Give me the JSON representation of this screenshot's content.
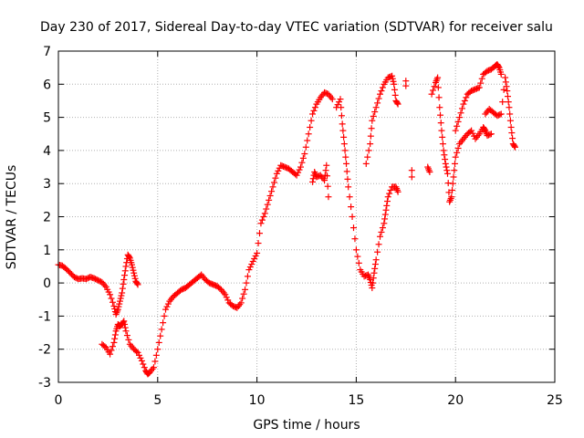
{
  "chart_data": {
    "type": "scatter",
    "title": "Day 230 of 2017, Sidereal Day-to-day VTEC variation (SDTVAR) for receiver salu",
    "xlabel": "GPS time / hours",
    "ylabel": "SDTVAR / TECUs",
    "xlim": [
      0,
      25
    ],
    "ylim": [
      -3,
      7
    ],
    "xticks": [
      "0",
      "5",
      "10",
      "15",
      "20",
      "25"
    ],
    "yticks": [
      "-3",
      "-2",
      "-1",
      "0",
      "1",
      "2",
      "3",
      "4",
      "5",
      "6",
      "7"
    ],
    "grid": true,
    "marker": "+",
    "color": "#ff0000",
    "series": [
      {
        "points": [
          [
            0.0,
            0.55
          ],
          [
            0.2,
            0.52
          ],
          [
            0.4,
            0.42
          ],
          [
            0.6,
            0.3
          ],
          [
            0.8,
            0.18
          ],
          [
            1.0,
            0.12
          ],
          [
            1.2,
            0.14
          ],
          [
            1.4,
            0.12
          ],
          [
            1.6,
            0.18
          ],
          [
            1.8,
            0.14
          ],
          [
            2.0,
            0.08
          ],
          [
            2.2,
            0.02
          ],
          [
            2.4,
            -0.12
          ],
          [
            2.6,
            -0.35
          ],
          [
            2.8,
            -0.7
          ],
          [
            2.9,
            -0.95
          ],
          [
            3.0,
            -0.8
          ],
          [
            3.1,
            -0.55
          ],
          [
            3.2,
            -0.3
          ],
          [
            3.3,
            0.1
          ],
          [
            3.4,
            0.5
          ],
          [
            3.5,
            0.85
          ],
          [
            3.6,
            0.75
          ],
          [
            3.7,
            0.55
          ],
          [
            3.8,
            0.3
          ],
          [
            3.9,
            0.05
          ],
          [
            4.0,
            -0.05
          ],
          [
            2.2,
            -1.85
          ],
          [
            2.4,
            -1.95
          ],
          [
            2.6,
            -2.15
          ],
          [
            2.8,
            -1.8
          ],
          [
            2.9,
            -1.45
          ],
          [
            3.0,
            -1.25
          ],
          [
            3.1,
            -1.3
          ],
          [
            3.2,
            -1.25
          ],
          [
            3.3,
            -1.15
          ],
          [
            3.4,
            -1.45
          ],
          [
            3.6,
            -1.85
          ],
          [
            3.8,
            -2.0
          ],
          [
            4.0,
            -2.1
          ],
          [
            4.2,
            -2.35
          ],
          [
            4.4,
            -2.65
          ],
          [
            4.5,
            -2.75
          ],
          [
            4.6,
            -2.7
          ],
          [
            4.8,
            -2.55
          ],
          [
            5.0,
            -2.0
          ],
          [
            5.2,
            -1.4
          ],
          [
            5.4,
            -0.8
          ],
          [
            5.6,
            -0.55
          ],
          [
            5.8,
            -0.4
          ],
          [
            6.0,
            -0.3
          ],
          [
            6.2,
            -0.2
          ],
          [
            6.4,
            -0.15
          ],
          [
            6.6,
            -0.05
          ],
          [
            6.8,
            0.05
          ],
          [
            7.0,
            0.15
          ],
          [
            7.2,
            0.25
          ],
          [
            7.4,
            0.1
          ],
          [
            7.6,
            0.0
          ],
          [
            7.8,
            -0.05
          ],
          [
            8.0,
            -0.1
          ],
          [
            8.2,
            -0.2
          ],
          [
            8.4,
            -0.35
          ],
          [
            8.6,
            -0.6
          ],
          [
            8.8,
            -0.7
          ],
          [
            9.0,
            -0.75
          ],
          [
            9.2,
            -0.6
          ],
          [
            9.4,
            -0.2
          ],
          [
            9.6,
            0.4
          ],
          [
            9.8,
            0.65
          ],
          [
            10.0,
            0.9
          ],
          [
            10.2,
            1.8
          ],
          [
            10.4,
            2.1
          ],
          [
            10.6,
            2.5
          ],
          [
            10.8,
            2.9
          ],
          [
            11.0,
            3.3
          ],
          [
            11.2,
            3.55
          ],
          [
            11.4,
            3.5
          ],
          [
            11.6,
            3.45
          ],
          [
            11.8,
            3.35
          ],
          [
            12.0,
            3.25
          ],
          [
            12.2,
            3.5
          ],
          [
            12.4,
            3.9
          ],
          [
            12.6,
            4.5
          ],
          [
            12.8,
            5.1
          ],
          [
            13.0,
            5.4
          ],
          [
            13.2,
            5.6
          ],
          [
            13.4,
            5.75
          ],
          [
            13.6,
            5.7
          ],
          [
            13.8,
            5.55
          ],
          [
            12.8,
            3.05
          ],
          [
            12.9,
            3.35
          ],
          [
            13.0,
            3.2
          ],
          [
            13.2,
            3.25
          ],
          [
            13.4,
            3.1
          ],
          [
            13.5,
            3.55
          ],
          [
            13.6,
            2.6
          ],
          [
            14.0,
            5.3
          ],
          [
            14.2,
            5.55
          ],
          [
            14.3,
            4.8
          ],
          [
            14.4,
            4.2
          ],
          [
            14.5,
            3.6
          ],
          [
            14.6,
            2.9
          ],
          [
            14.8,
            2.0
          ],
          [
            15.0,
            1.0
          ],
          [
            15.2,
            0.4
          ],
          [
            15.4,
            0.2
          ],
          [
            15.6,
            0.25
          ],
          [
            15.7,
            0.1
          ],
          [
            15.8,
            -0.15
          ],
          [
            15.9,
            0.3
          ],
          [
            16.0,
            0.7
          ],
          [
            16.2,
            1.4
          ],
          [
            16.4,
            1.8
          ],
          [
            16.5,
            2.2
          ],
          [
            16.6,
            2.6
          ],
          [
            16.8,
            2.9
          ],
          [
            17.0,
            2.9
          ],
          [
            17.1,
            2.75
          ],
          [
            15.5,
            3.6
          ],
          [
            15.7,
            4.2
          ],
          [
            15.8,
            4.9
          ],
          [
            16.0,
            5.3
          ],
          [
            16.2,
            5.7
          ],
          [
            16.4,
            6.0
          ],
          [
            16.6,
            6.2
          ],
          [
            16.8,
            6.25
          ],
          [
            16.9,
            6.0
          ],
          [
            17.0,
            5.5
          ],
          [
            17.1,
            5.4
          ],
          [
            17.5,
            6.1
          ],
          [
            17.5,
            5.95
          ],
          [
            17.8,
            3.2
          ],
          [
            17.8,
            3.4
          ],
          [
            18.6,
            3.5
          ],
          [
            18.7,
            3.35
          ],
          [
            18.8,
            5.7
          ],
          [
            19.0,
            6.05
          ],
          [
            19.1,
            6.2
          ],
          [
            19.2,
            5.3
          ],
          [
            19.3,
            4.6
          ],
          [
            19.4,
            4.0
          ],
          [
            19.5,
            3.6
          ],
          [
            19.6,
            3.3
          ],
          [
            19.7,
            2.45
          ],
          [
            19.8,
            2.6
          ],
          [
            19.9,
            3.2
          ],
          [
            20.0,
            3.8
          ],
          [
            20.2,
            4.2
          ],
          [
            20.4,
            4.35
          ],
          [
            20.6,
            4.5
          ],
          [
            20.8,
            4.6
          ],
          [
            21.0,
            4.35
          ],
          [
            21.2,
            4.5
          ],
          [
            21.4,
            4.7
          ],
          [
            21.5,
            4.6
          ],
          [
            21.6,
            4.45
          ],
          [
            21.8,
            4.5
          ],
          [
            20.0,
            4.6
          ],
          [
            20.2,
            5.0
          ],
          [
            20.4,
            5.4
          ],
          [
            20.6,
            5.7
          ],
          [
            20.8,
            5.8
          ],
          [
            21.0,
            5.85
          ],
          [
            21.2,
            5.9
          ],
          [
            21.4,
            6.3
          ],
          [
            21.6,
            6.4
          ],
          [
            21.8,
            6.45
          ],
          [
            22.0,
            6.55
          ],
          [
            22.1,
            6.6
          ],
          [
            22.2,
            6.5
          ],
          [
            22.3,
            6.3
          ],
          [
            21.5,
            5.1
          ],
          [
            21.7,
            5.25
          ],
          [
            21.9,
            5.15
          ],
          [
            22.1,
            5.05
          ],
          [
            22.3,
            5.1
          ],
          [
            22.5,
            6.2
          ],
          [
            22.6,
            5.8
          ],
          [
            22.7,
            5.3
          ],
          [
            22.8,
            4.7
          ],
          [
            22.9,
            4.2
          ],
          [
            23.0,
            4.1
          ]
        ]
      }
    ]
  }
}
